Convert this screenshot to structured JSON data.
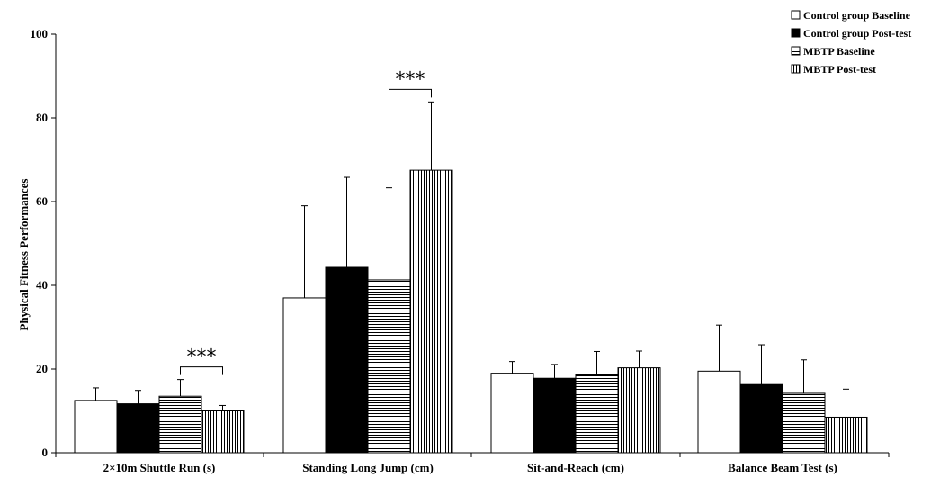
{
  "chart_data": {
    "type": "bar",
    "title": "",
    "xlabel": "",
    "ylabel": "Physical Fitness Performances",
    "ylim": [
      0,
      100
    ],
    "yticks": [
      0,
      20,
      40,
      60,
      80,
      100
    ],
    "categories": [
      "2×10m Shuttle Run (s)",
      "Standing Long Jump (cm)",
      "Sit-and-Reach (cm)",
      "Balance Beam Test (s)"
    ],
    "series": [
      {
        "name": "Control group Baseline",
        "pattern": "white",
        "values": [
          12.5,
          37,
          19,
          19.5
        ],
        "errors": [
          3,
          22,
          2.8,
          11
        ]
      },
      {
        "name": "Control group Post-test",
        "pattern": "black",
        "values": [
          11.7,
          44.3,
          17.8,
          16.3
        ],
        "errors": [
          3.2,
          21.5,
          3.3,
          9.5
        ]
      },
      {
        "name": "MBTP Baseline",
        "pattern": "horizontal-stripes",
        "values": [
          13.5,
          41.3,
          18.6,
          14.2
        ],
        "errors": [
          4,
          22,
          5.6,
          8
        ]
      },
      {
        "name": "MBTP Post-test",
        "pattern": "vertical-stripes",
        "values": [
          10,
          67.5,
          20.3,
          8.5
        ],
        "errors": [
          1.3,
          16.3,
          4,
          6.7
        ]
      }
    ],
    "annotations": [
      {
        "text": "***",
        "category_index": 0,
        "between_series": [
          2,
          3
        ]
      },
      {
        "text": "***",
        "category_index": 1,
        "between_series": [
          2,
          3
        ]
      }
    ],
    "legend_position": "top-right",
    "colors": {
      "axis": "#000000",
      "bar_fill_white": "#ffffff",
      "bar_fill_black": "#000000",
      "stripe": "#000000"
    }
  }
}
